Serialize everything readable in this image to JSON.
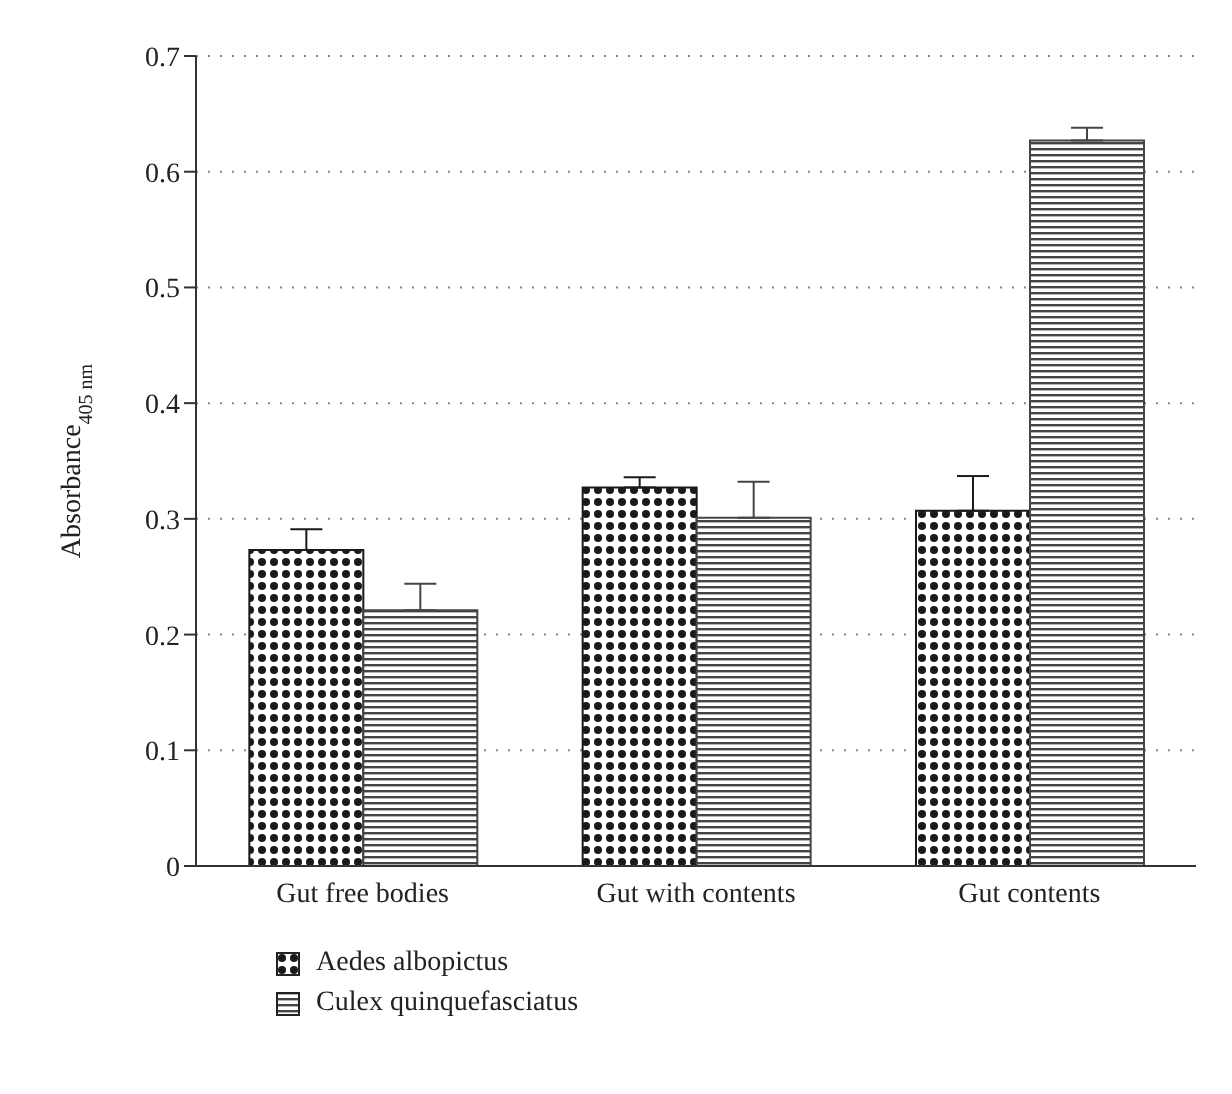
{
  "chart_data": {
    "type": "bar",
    "ylabel": "Absorbance$_{405 nm}$",
    "categories": [
      "Gut free bodies",
      "Gut with contents",
      "Gut contents"
    ],
    "series": [
      {
        "name": "Aedes albopictus",
        "color": "#1a1a1a",
        "values": [
          0.273,
          0.327,
          0.307
        ],
        "errors": [
          [
            0.273,
            0.291
          ],
          [
            0.327,
            0.336
          ],
          [
            0.307,
            0.337
          ]
        ]
      },
      {
        "name": "Culex quinquefasciatus",
        "color": "#444444",
        "values": [
          0.221,
          0.301,
          0.627
        ],
        "errors": [
          [
            0.221,
            0.244
          ],
          [
            0.301,
            0.332
          ],
          [
            0.627,
            0.638
          ]
        ]
      }
    ],
    "ylim": [
      0,
      0.7
    ],
    "yticks": [
      0,
      0.1,
      0.2,
      0.3,
      0.4,
      0.5,
      0.6,
      0.7
    ],
    "grid": "y",
    "legend": "bottom"
  }
}
